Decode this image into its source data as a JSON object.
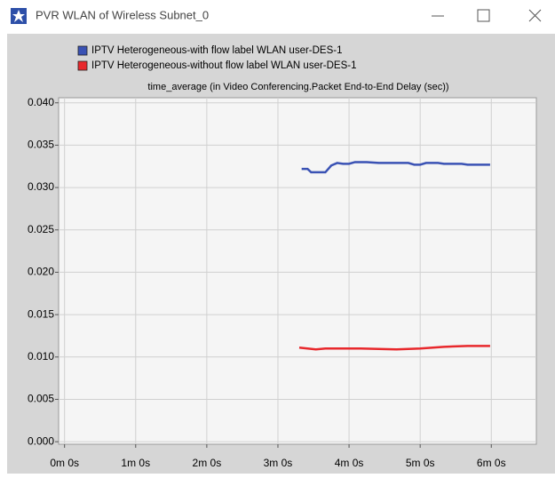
{
  "window": {
    "title": "PVR WLAN of Wireless Subnet_0"
  },
  "chart_data": {
    "type": "line",
    "title": "time_average (in Video Conferencing.Packet End-to-End Delay (sec))",
    "series": [
      {
        "name": "IPTV  Heterogeneous-with flow label WLAN user-DES-1",
        "color": "#3a52b4",
        "x": [
          200,
          205,
          208,
          220,
          225,
          230,
          235,
          240,
          245,
          255,
          265,
          290,
          295,
          300,
          305,
          315,
          320,
          335,
          340,
          359
        ],
        "values": [
          0.0322,
          0.0322,
          0.0318,
          0.0318,
          0.0326,
          0.0329,
          0.0328,
          0.0328,
          0.033,
          0.033,
          0.0329,
          0.0329,
          0.0327,
          0.0327,
          0.0329,
          0.0329,
          0.0328,
          0.0328,
          0.0327,
          0.0327
        ]
      },
      {
        "name": "IPTV  Heterogeneous-without flow label WLAN user-DES-1",
        "color": "#e8282c",
        "x": [
          198,
          205,
          212,
          220,
          250,
          280,
          300,
          320,
          340,
          359
        ],
        "values": [
          0.0111,
          0.011,
          0.0109,
          0.011,
          0.011,
          0.0109,
          0.011,
          0.0112,
          0.0113,
          0.0113
        ]
      }
    ],
    "xlim": [
      -5,
      398
    ],
    "xticks": [
      {
        "value": 0,
        "label": "0m 0s"
      },
      {
        "value": 60,
        "label": "1m 0s"
      },
      {
        "value": 120,
        "label": "2m 0s"
      },
      {
        "value": 180,
        "label": "3m 0s"
      },
      {
        "value": 240,
        "label": "4m 0s"
      },
      {
        "value": 300,
        "label": "5m 0s"
      },
      {
        "value": 360,
        "label": "6m 0s"
      }
    ],
    "ylim": [
      -0.0003,
      0.0406
    ],
    "yticks": [
      {
        "value": 0,
        "label": "0.000"
      },
      {
        "value": 0.005,
        "label": "0.005"
      },
      {
        "value": 0.01,
        "label": "0.010"
      },
      {
        "value": 0.015,
        "label": "0.015"
      },
      {
        "value": 0.02,
        "label": "0.020"
      },
      {
        "value": 0.025,
        "label": "0.025"
      },
      {
        "value": 0.03,
        "label": "0.030"
      },
      {
        "value": 0.035,
        "label": "0.035"
      },
      {
        "value": 0.04,
        "label": "0.040"
      }
    ],
    "grid": true
  }
}
